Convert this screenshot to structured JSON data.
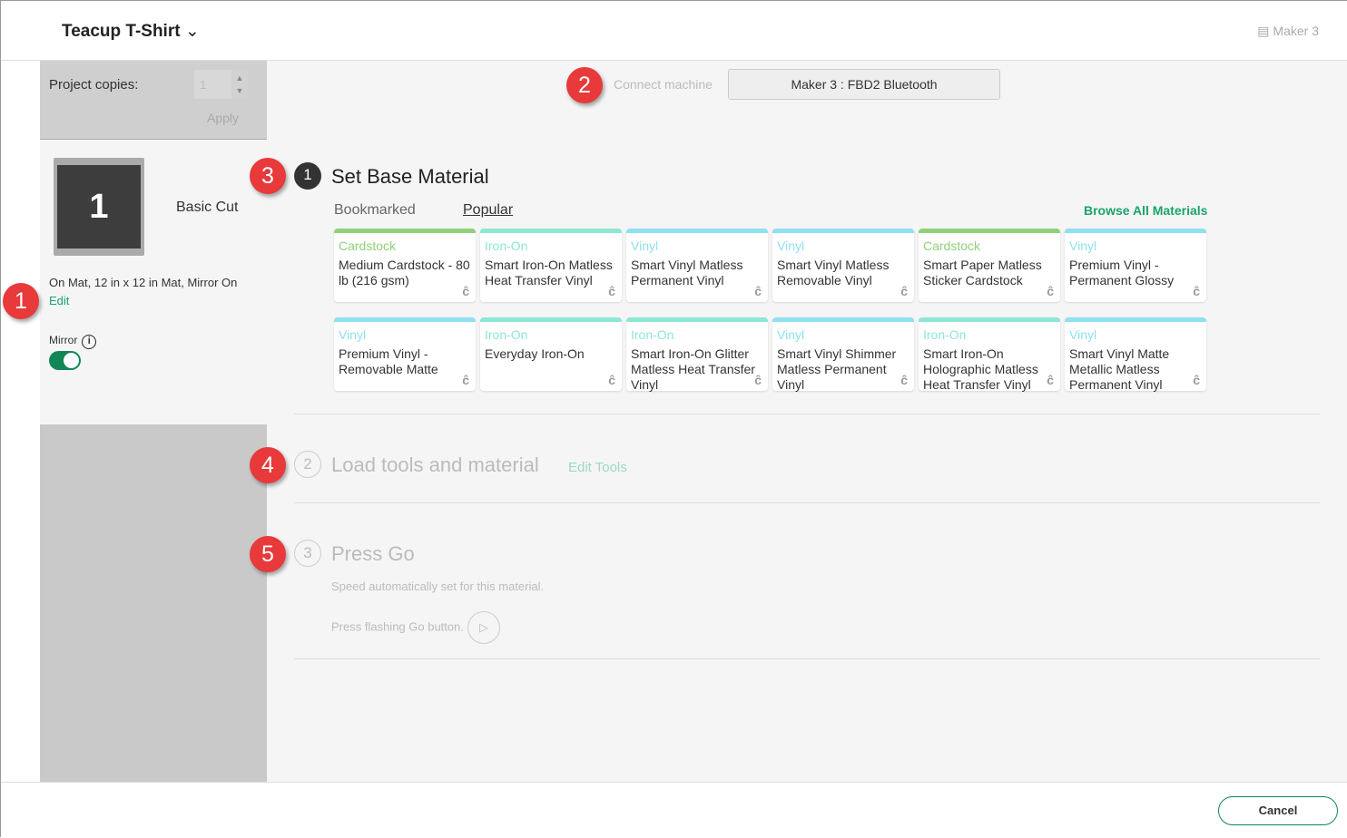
{
  "header": {
    "title": "Teacup T-Shirt",
    "machine": "Maker 3"
  },
  "left": {
    "copies_label": "Project copies:",
    "copies_value": "1",
    "apply": "Apply",
    "mat_number": "1",
    "cut_type": "Basic Cut",
    "mat_info": "On Mat, 12 in x 12 in Mat, Mirror On",
    "edit": "Edit",
    "mirror_label": "Mirror",
    "mirror_on": true
  },
  "connect": {
    "label": "Connect machine",
    "value": "Maker 3 : FBD2 Bluetooth"
  },
  "steps": [
    {
      "num": "1",
      "title": "Set Base Material"
    },
    {
      "num": "2",
      "title": "Load tools and material",
      "link": "Edit Tools"
    },
    {
      "num": "3",
      "title": "Press Go",
      "speed_note": "Speed automatically set for this material.",
      "press_note": "Press flashing Go button."
    }
  ],
  "tabs": [
    "Bookmarked",
    "Popular"
  ],
  "active_tab": "Popular",
  "browse_all": "Browse All Materials",
  "colors": {
    "Cardstock": "#8fd17a",
    "Iron-On": "#8ee6d5",
    "Vinyl": "#8fe0f0",
    "accent": "#1aa36b"
  },
  "materials": [
    {
      "category": "Cardstock",
      "name": "Medium Cardstock - 80 lb (216 gsm)"
    },
    {
      "category": "Iron-On",
      "name": "Smart Iron-On Matless Heat Transfer Vinyl"
    },
    {
      "category": "Vinyl",
      "name": "Smart Vinyl Matless Permanent Vinyl"
    },
    {
      "category": "Vinyl",
      "name": "Smart Vinyl Matless Removable Vinyl"
    },
    {
      "category": "Cardstock",
      "name": "Smart Paper Matless Sticker Cardstock"
    },
    {
      "category": "Vinyl",
      "name": "Premium Vinyl - Permanent Glossy"
    },
    {
      "category": "Vinyl",
      "name": "Premium Vinyl - Removable Matte"
    },
    {
      "category": "Iron-On",
      "name": "Everyday Iron-On"
    },
    {
      "category": "Iron-On",
      "name": "Smart Iron-On Glitter Matless Heat Transfer Vinyl"
    },
    {
      "category": "Vinyl",
      "name": "Smart Vinyl Shimmer Matless Permanent Vinyl"
    },
    {
      "category": "Iron-On",
      "name": "Smart Iron-On Holographic Matless Heat Transfer Vinyl"
    },
    {
      "category": "Vinyl",
      "name": "Smart Vinyl Matte Metallic Matless Permanent Vinyl"
    }
  ],
  "callouts": [
    "1",
    "2",
    "3",
    "4",
    "5"
  ],
  "footer": {
    "cancel": "Cancel"
  }
}
